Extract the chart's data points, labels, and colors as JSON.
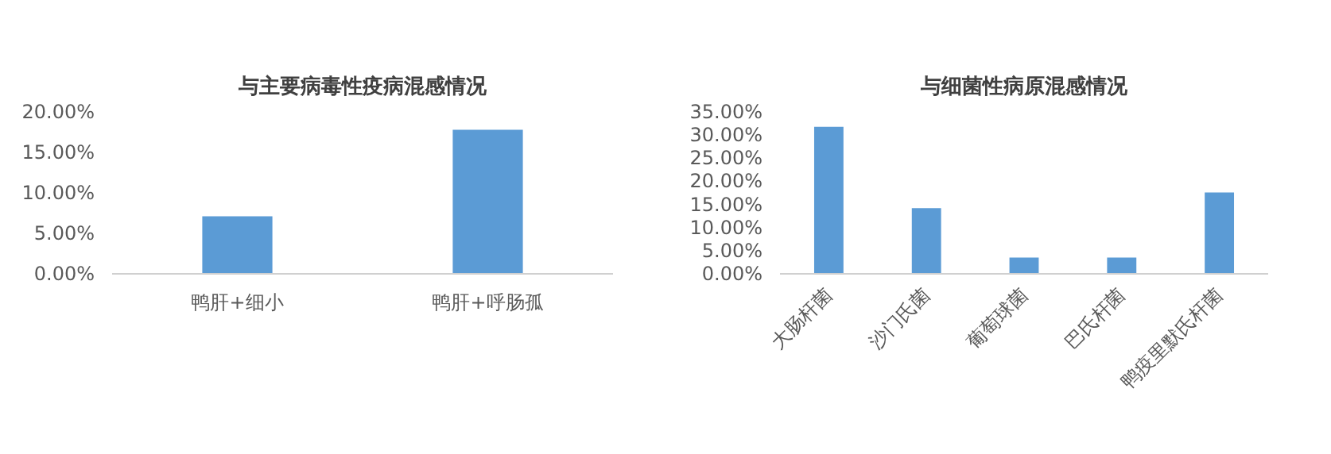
{
  "chart_data": [
    {
      "type": "bar",
      "title": "与主要病毒性疫病混感情况",
      "categories": [
        "鸭肝+细小",
        "鸭肝+呼肠孤"
      ],
      "values": [
        7.1,
        17.8
      ],
      "color": "#5b9bd5",
      "ylim": [
        0,
        20
      ],
      "yticks": [
        {
          "value": 0,
          "label": "0.00%"
        },
        {
          "value": 5,
          "label": "5.00%"
        },
        {
          "value": 10,
          "label": "10.00%"
        },
        {
          "value": 15,
          "label": "15.00%"
        },
        {
          "value": 20,
          "label": "20.00%"
        }
      ],
      "grid": false
    },
    {
      "type": "bar",
      "title": "与细菌性病原混感情况",
      "categories": [
        "大肠杆菌",
        "沙门氏菌",
        "葡萄球菌",
        "巴氏杆菌",
        "鸭疫里默氏杆菌"
      ],
      "values": [
        31.8,
        14.2,
        3.5,
        3.5,
        17.6
      ],
      "color": "#5b9bd5",
      "ylim": [
        0,
        35
      ],
      "yticks": [
        {
          "value": 0,
          "label": "0.00%"
        },
        {
          "value": 5,
          "label": "5.00%"
        },
        {
          "value": 10,
          "label": "10.00%"
        },
        {
          "value": 15,
          "label": "15.00%"
        },
        {
          "value": 20,
          "label": "20.00%"
        },
        {
          "value": 25,
          "label": "25.00%"
        },
        {
          "value": 30,
          "label": "30.00%"
        },
        {
          "value": 35,
          "label": "35.00%"
        }
      ],
      "grid": false
    }
  ]
}
